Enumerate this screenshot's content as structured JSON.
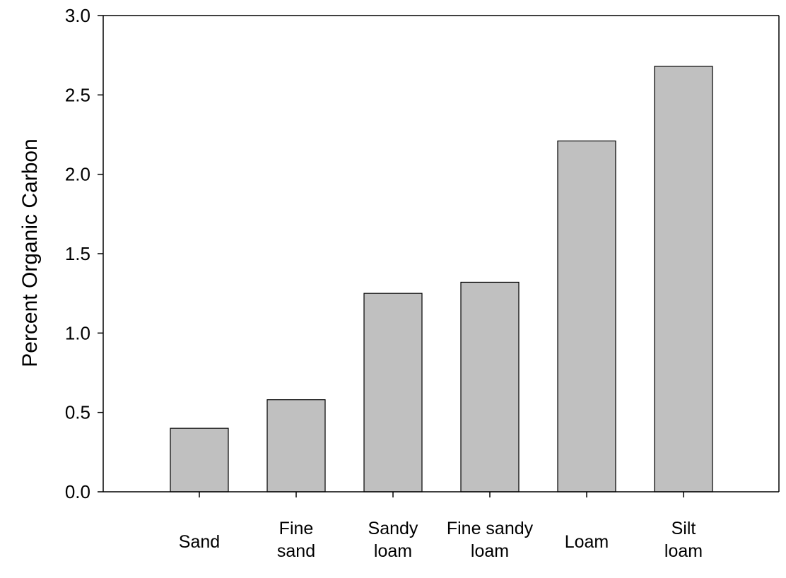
{
  "chart_data": {
    "type": "bar",
    "title": "",
    "xlabel": "",
    "ylabel": "Percent Organic Carbon",
    "categories": [
      [
        "Sand"
      ],
      [
        "Fine",
        "sand"
      ],
      [
        "Sandy",
        "loam"
      ],
      [
        "Fine sandy",
        "loam"
      ],
      [
        "Loam"
      ],
      [
        "Silt",
        "loam"
      ]
    ],
    "values": [
      0.4,
      0.58,
      1.25,
      1.32,
      2.21,
      2.68
    ],
    "ylim": [
      0,
      3.0
    ],
    "yticks": [
      "0.0",
      "0.5",
      "1.0",
      "1.5",
      "2.0",
      "2.5",
      "3.0"
    ],
    "grid": false,
    "legend": "none",
    "colors": {
      "bar_fill": "#c0c0c0",
      "bar_stroke": "#000000",
      "axis": "#000000",
      "background": "#ffffff"
    }
  }
}
